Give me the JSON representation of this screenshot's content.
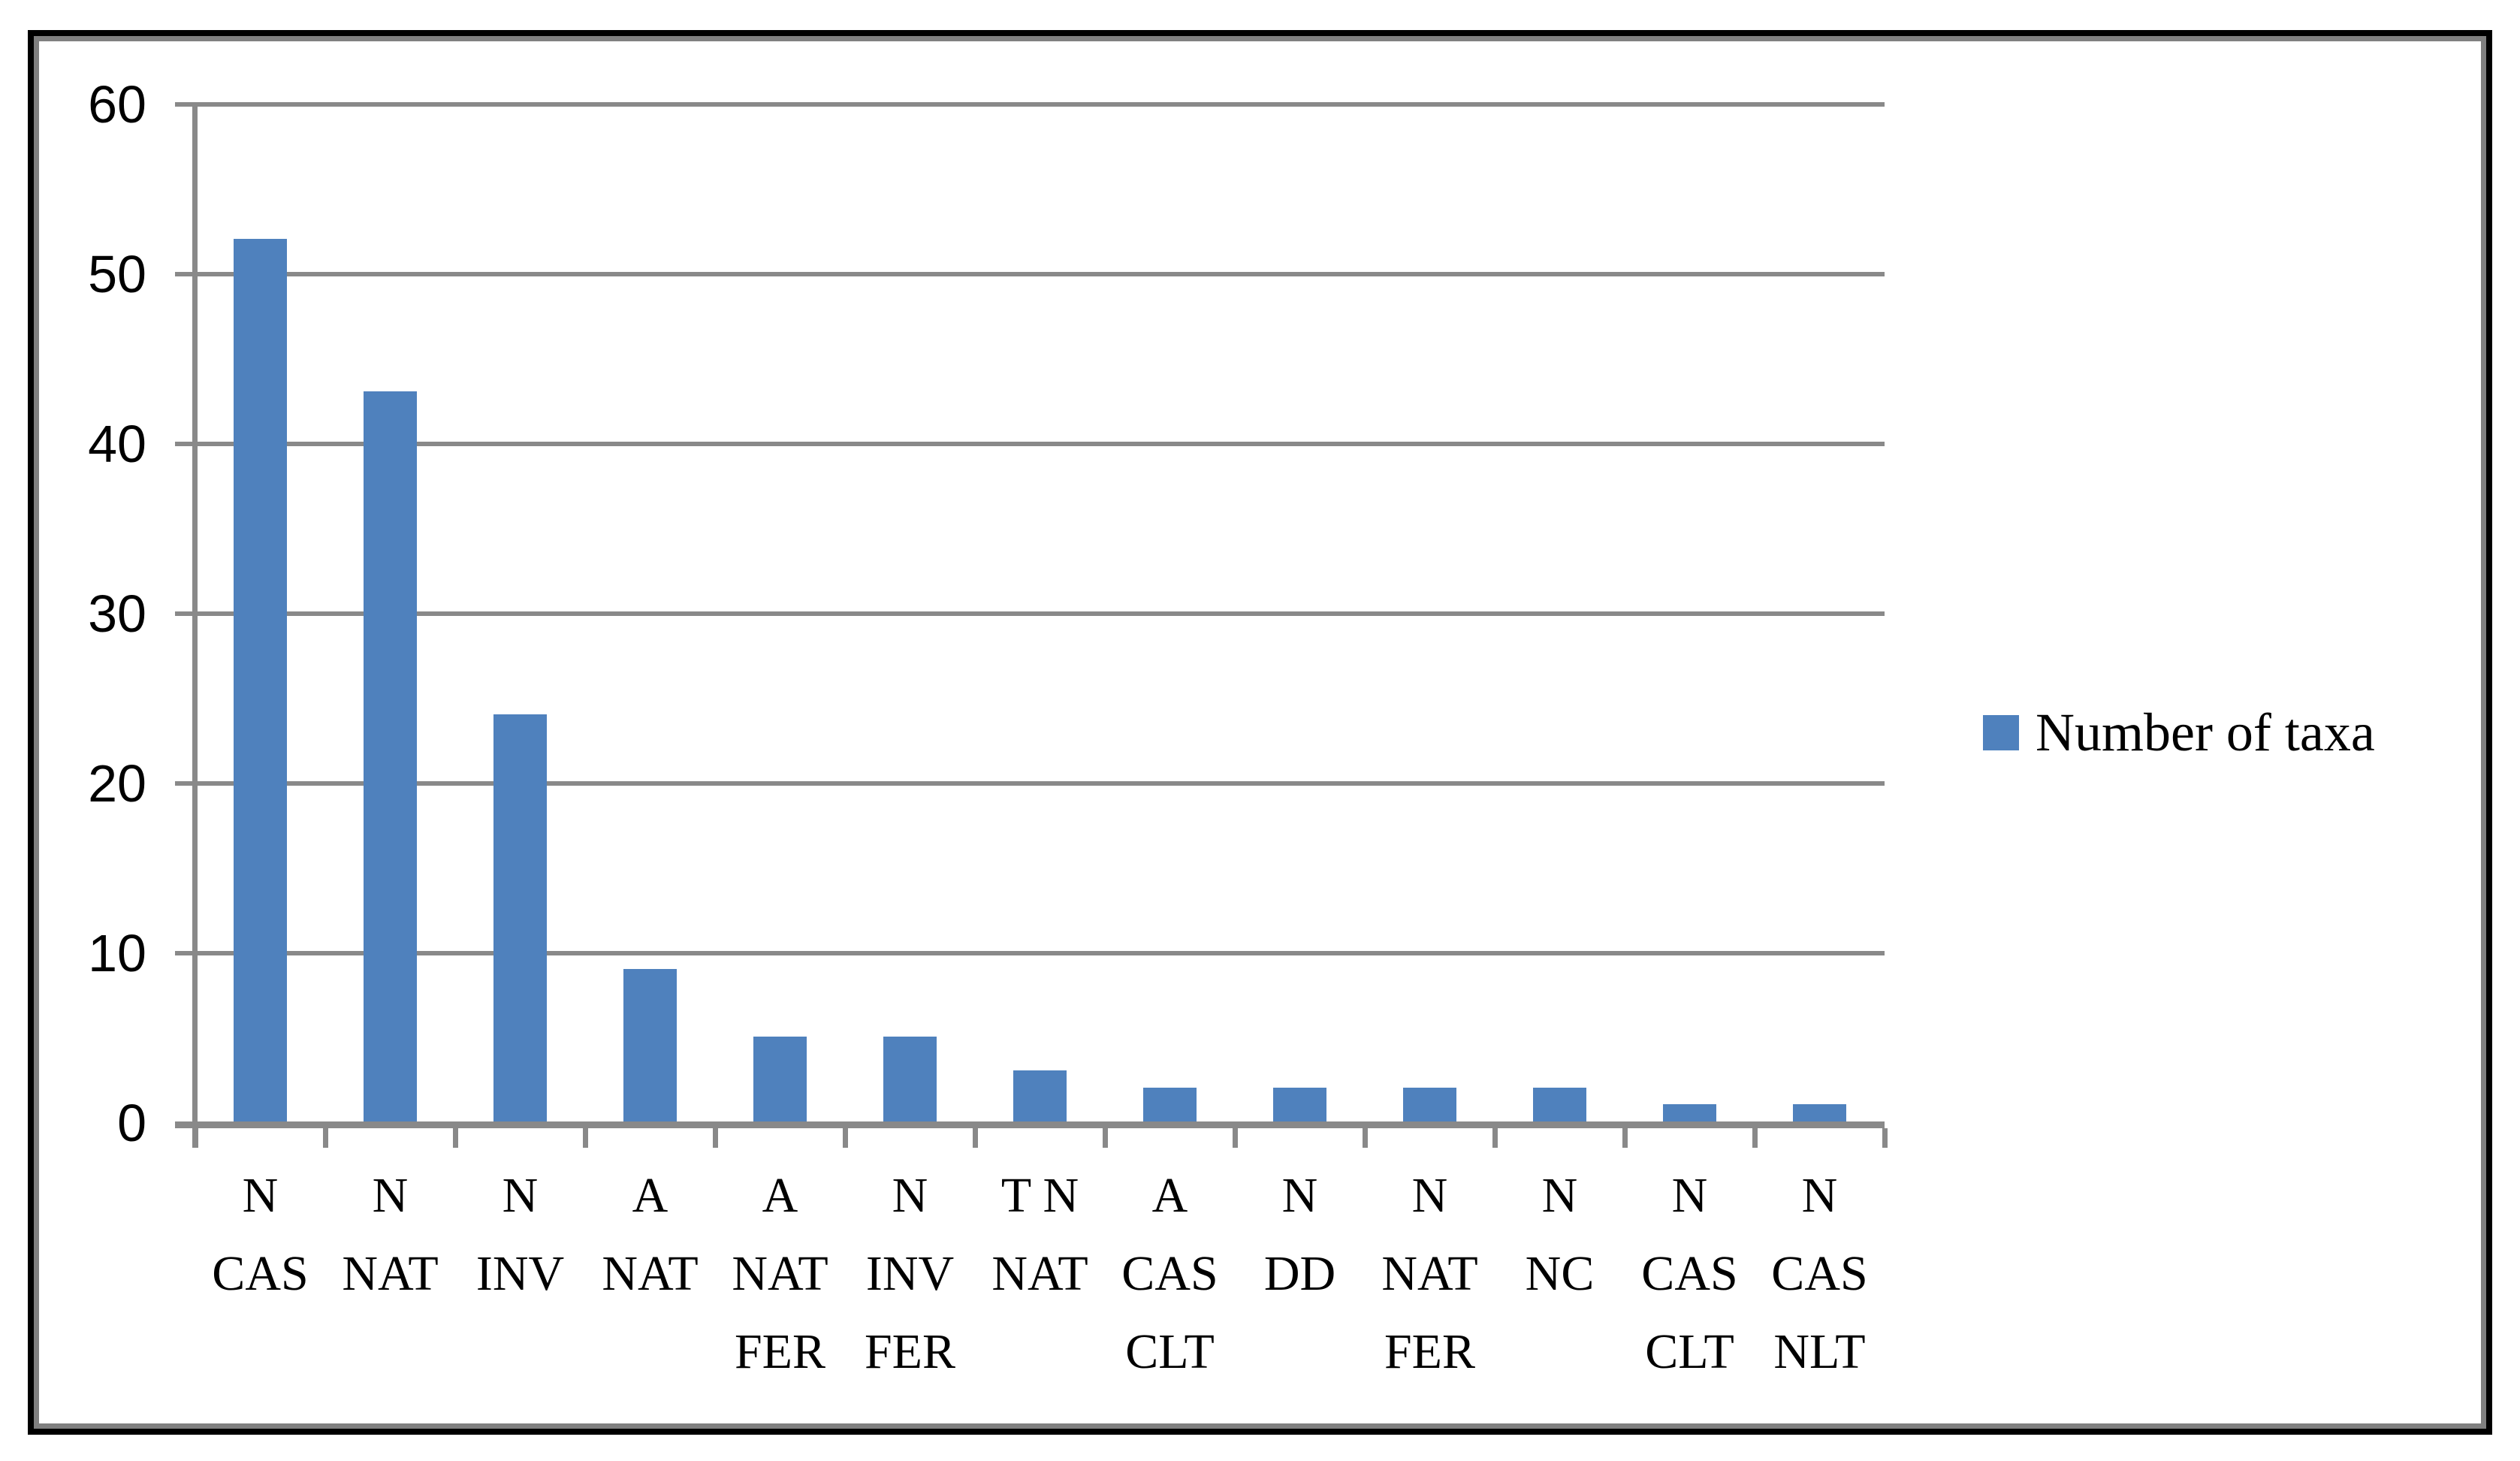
{
  "chart_data": {
    "type": "bar",
    "title": "",
    "legend": "Number of taxa",
    "legend_position": "right",
    "grid": true,
    "categories": [
      [
        "N",
        "CAS"
      ],
      [
        "N",
        "NAT"
      ],
      [
        "N",
        "INV"
      ],
      [
        "A",
        "NAT"
      ],
      [
        "A",
        "NAT",
        "FER"
      ],
      [
        "N",
        "INV",
        "FER"
      ],
      [
        "T N",
        "NAT"
      ],
      [
        "A",
        "CAS",
        "CLT"
      ],
      [
        "N",
        "DD"
      ],
      [
        "N",
        "NAT",
        "FER"
      ],
      [
        "N",
        "NC"
      ],
      [
        "N",
        "CAS",
        "CLT"
      ],
      [
        "N",
        "CAS",
        "NLT"
      ]
    ],
    "series": [
      {
        "name": "Number of taxa",
        "values": [
          52,
          43,
          24,
          9,
          5,
          5,
          3,
          2,
          2,
          2,
          2,
          1,
          1
        ]
      }
    ],
    "xlabel": "",
    "ylabel": "",
    "ylim": [
      0,
      60
    ],
    "ytick_step": 10,
    "ytick_labels": [
      "0",
      "10",
      "20",
      "30",
      "40",
      "50",
      "60"
    ],
    "colors": {
      "bar": "#4F81BD",
      "gridline": "#898989",
      "axis": "#898989",
      "text": "#000000",
      "frame_outer": "#000000",
      "frame_inner": "#808080"
    }
  }
}
